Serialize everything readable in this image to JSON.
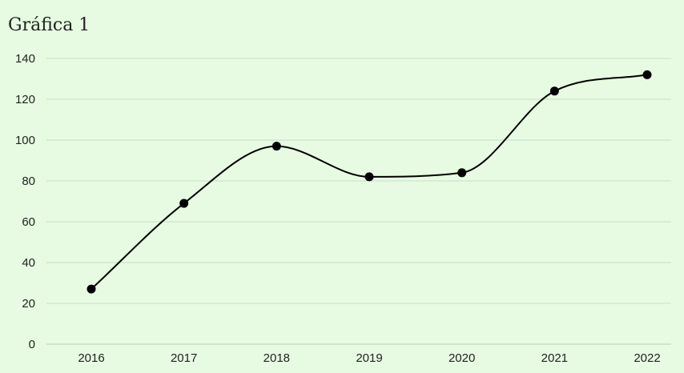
{
  "colors": {
    "background": "#e6fbe1",
    "grid": "#c8dcc8",
    "axis": "#c8dcc8",
    "line": "#000000",
    "marker": "#000000"
  },
  "chart_data": {
    "type": "line",
    "title": "Gráfica 1",
    "xlabel": "",
    "ylabel": "",
    "categories": [
      "2016",
      "2017",
      "2018",
      "2019",
      "2020",
      "2021",
      "2022"
    ],
    "series": [
      {
        "values": [
          27,
          69,
          97,
          82,
          84,
          124,
          132
        ]
      }
    ],
    "ylim": [
      0,
      140
    ],
    "yticks": [
      0,
      20,
      40,
      60,
      80,
      100,
      120,
      140
    ],
    "grid": true,
    "smooth": true,
    "markers": true,
    "legend": "none"
  }
}
